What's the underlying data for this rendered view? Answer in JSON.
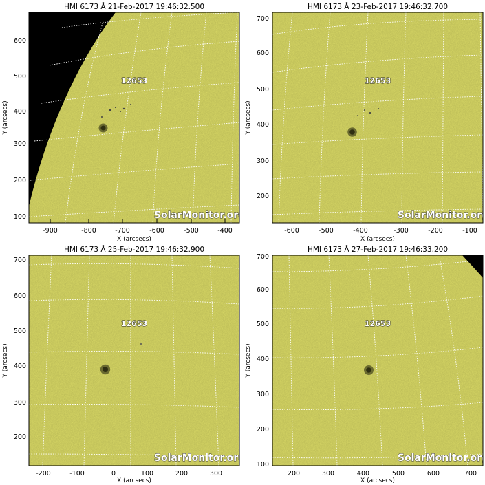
{
  "panels": [
    {
      "title": "HMI 6173 Å 21-Feb-2017 19:46:32.500",
      "x_label": "X (arcsecs)",
      "y_label": "Y (arcsecs)",
      "x_ticks": [
        "-900",
        "-800",
        "-700",
        "-600",
        "-500",
        "-400"
      ],
      "y_ticks": [
        "100",
        "200",
        "300",
        "400",
        "500",
        "600"
      ],
      "region_label": "12653",
      "watermark": "SolarMonitor.org"
    },
    {
      "title": "HMI 6173 Å 23-Feb-2017 19:46:32.700",
      "x_label": "X (arcsecs)",
      "y_label": "Y (arcsecs)",
      "x_ticks": [
        "-600",
        "-500",
        "-400",
        "-300",
        "-200",
        "-100"
      ],
      "y_ticks": [
        "200",
        "300",
        "400",
        "500",
        "600",
        "700"
      ],
      "region_label": "12653",
      "watermark": "SolarMonitor.org"
    },
    {
      "title": "HMI 6173 Å 25-Feb-2017 19:46:32.900",
      "x_label": "X (arcsecs)",
      "y_label": "Y (arcsecs)",
      "x_ticks": [
        "-200",
        "-100",
        "0",
        "100",
        "200",
        "300"
      ],
      "y_ticks": [
        "200",
        "300",
        "400",
        "500",
        "600",
        "700"
      ],
      "region_label": "12653",
      "watermark": "SolarMonitor.org"
    },
    {
      "title": "HMI 6173 Å 27-Feb-2017 19:46:33.200",
      "x_label": "X (arcsecs)",
      "y_label": "Y (arcsecs)",
      "x_ticks": [
        "200",
        "300",
        "400",
        "500",
        "600",
        "700"
      ],
      "y_ticks": [
        "100",
        "200",
        "300",
        "400",
        "500",
        "600",
        "700"
      ],
      "region_label": "12653",
      "watermark": "SolarMonitor.org"
    }
  ],
  "colors": {
    "disk": "#dada66",
    "space": "#000000",
    "grid": "#ffffff",
    "spot": "#2e2e12"
  }
}
